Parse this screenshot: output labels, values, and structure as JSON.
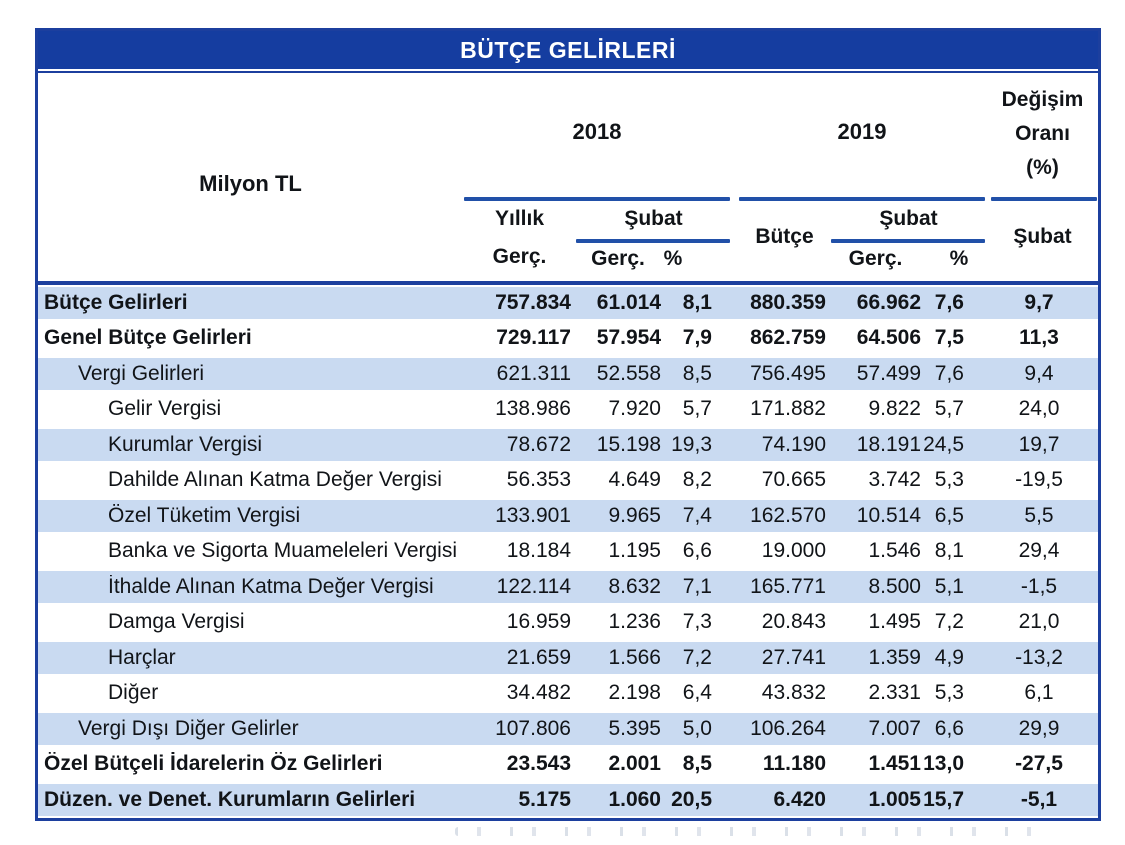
{
  "title": "BÜTÇE GELİRLERİ",
  "colors": {
    "title_bar_blue": "#153da0",
    "rule_line_blue": "#2150a8",
    "border_blue": "#1c3f9e",
    "row_band_blue": "#c9daf1",
    "text_black": "#111418"
  },
  "header": {
    "unit_label": "Milyon TL",
    "group_2018": "2018",
    "group_2019": "2019",
    "change_lines": [
      "Değişim",
      "Oranı",
      "(%)"
    ],
    "yillik_line1": "Yıllık",
    "yillik_line2": "Gerç.",
    "subat_2018": "Şubat",
    "gerc_2018": "Gerç.",
    "pct_2018": "%",
    "butce_2019": "Bütçe",
    "subat_2019": "Şubat",
    "gerc_2019": "Gerç.",
    "pct_2019": "%",
    "subat_change": "Şubat"
  },
  "columns": [
    "Milyon TL",
    "2018 Yıllık Gerç.",
    "2018 Şubat Gerç.",
    "2018 Şubat %",
    "2019 Bütçe",
    "2019 Şubat Gerç.",
    "2019 Şubat %",
    "Değişim Oranı (%) Şubat"
  ],
  "rows": [
    {
      "label": "Bütçe Gelirleri",
      "indent": 0,
      "bold": true,
      "band": true,
      "values": [
        "757.834",
        "61.014",
        "8,1",
        "880.359",
        "66.962",
        "7,6",
        "9,7"
      ]
    },
    {
      "label": "Genel Bütçe Gelirleri",
      "indent": 0,
      "bold": true,
      "band": false,
      "values": [
        "729.117",
        "57.954",
        "7,9",
        "862.759",
        "64.506",
        "7,5",
        "11,3"
      ]
    },
    {
      "label": "Vergi Gelirleri",
      "indent": 1,
      "bold": false,
      "band": true,
      "values": [
        "621.311",
        "52.558",
        "8,5",
        "756.495",
        "57.499",
        "7,6",
        "9,4"
      ]
    },
    {
      "label": "Gelir Vergisi",
      "indent": 2,
      "bold": false,
      "band": false,
      "values": [
        "138.986",
        "7.920",
        "5,7",
        "171.882",
        "9.822",
        "5,7",
        "24,0"
      ]
    },
    {
      "label": "Kurumlar Vergisi",
      "indent": 2,
      "bold": false,
      "band": true,
      "values": [
        "78.672",
        "15.198",
        "19,3",
        "74.190",
        "18.191",
        "24,5",
        "19,7"
      ]
    },
    {
      "label": "Dahilde Alınan Katma Değer Vergisi",
      "indent": 2,
      "bold": false,
      "band": false,
      "values": [
        "56.353",
        "4.649",
        "8,2",
        "70.665",
        "3.742",
        "5,3",
        "-19,5"
      ]
    },
    {
      "label": "Özel Tüketim Vergisi",
      "indent": 2,
      "bold": false,
      "band": true,
      "values": [
        "133.901",
        "9.965",
        "7,4",
        "162.570",
        "10.514",
        "6,5",
        "5,5"
      ]
    },
    {
      "label": "Banka ve Sigorta Muameleleri Vergisi",
      "indent": 2,
      "bold": false,
      "band": false,
      "values": [
        "18.184",
        "1.195",
        "6,6",
        "19.000",
        "1.546",
        "8,1",
        "29,4"
      ]
    },
    {
      "label": "İthalde Alınan Katma Değer Vergisi",
      "indent": 2,
      "bold": false,
      "band": true,
      "values": [
        "122.114",
        "8.632",
        "7,1",
        "165.771",
        "8.500",
        "5,1",
        "-1,5"
      ]
    },
    {
      "label": "Damga Vergisi",
      "indent": 2,
      "bold": false,
      "band": false,
      "values": [
        "16.959",
        "1.236",
        "7,3",
        "20.843",
        "1.495",
        "7,2",
        "21,0"
      ]
    },
    {
      "label": "Harçlar",
      "indent": 2,
      "bold": false,
      "band": true,
      "values": [
        "21.659",
        "1.566",
        "7,2",
        "27.741",
        "1.359",
        "4,9",
        "-13,2"
      ]
    },
    {
      "label": "Diğer",
      "indent": 2,
      "bold": false,
      "band": false,
      "values": [
        "34.482",
        "2.198",
        "6,4",
        "43.832",
        "2.331",
        "5,3",
        "6,1"
      ]
    },
    {
      "label": "Vergi Dışı Diğer Gelirler",
      "indent": 1,
      "bold": false,
      "band": true,
      "values": [
        "107.806",
        "5.395",
        "5,0",
        "106.264",
        "7.007",
        "6,6",
        "29,9"
      ]
    },
    {
      "label": "Özel Bütçeli İdarelerin Öz  Gelirleri",
      "indent": 0,
      "bold": true,
      "band": false,
      "values": [
        "23.543",
        "2.001",
        "8,5",
        "11.180",
        "1.451",
        "13,0",
        "-27,5"
      ]
    },
    {
      "label": "Düzen. ve Denet. Kurumların Gelirleri",
      "indent": 0,
      "bold": true,
      "band": true,
      "values": [
        "5.175",
        "1.060",
        "20,5",
        "6.420",
        "1.005",
        "15,7",
        "-5,1"
      ]
    }
  ]
}
